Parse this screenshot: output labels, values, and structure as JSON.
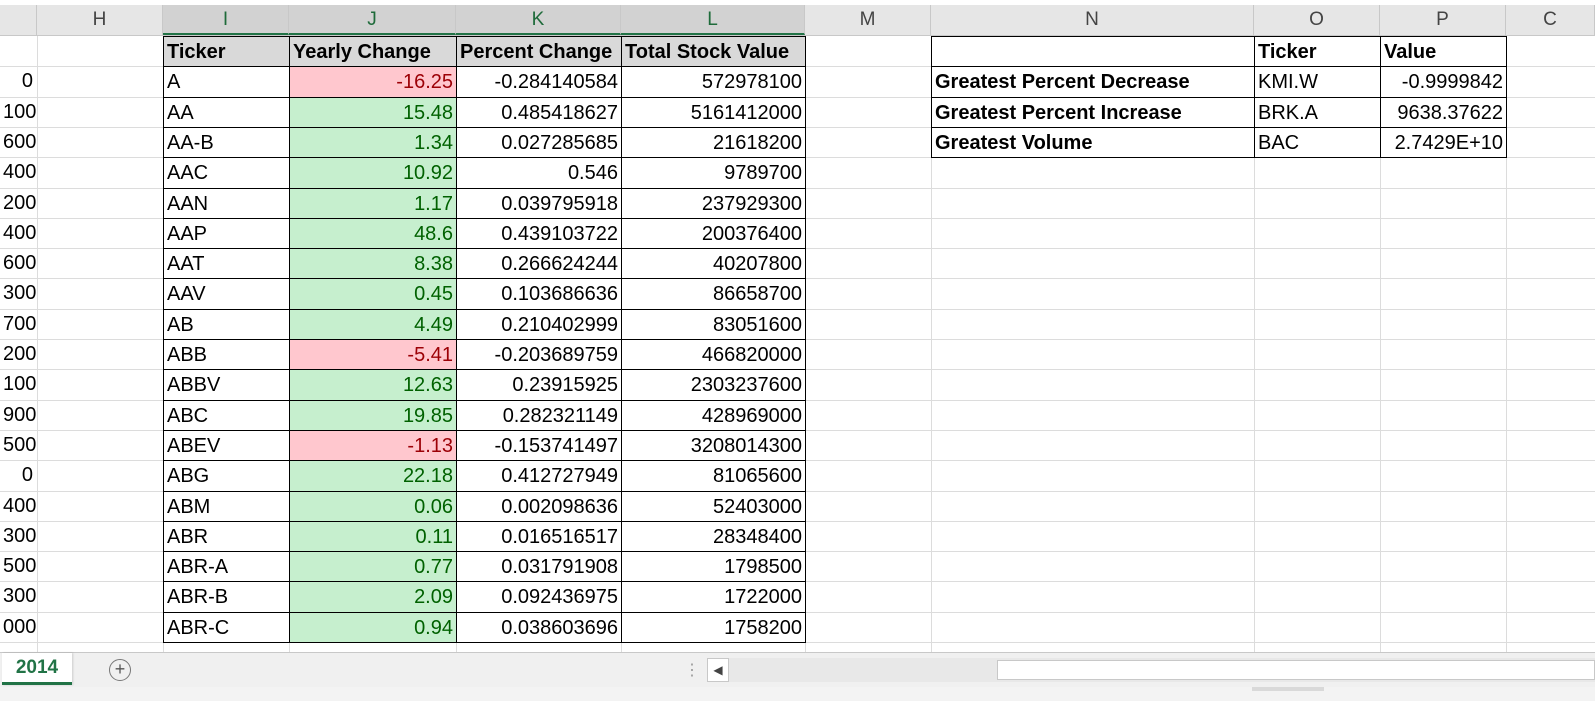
{
  "columns": [
    "H",
    "I",
    "J",
    "K",
    "L",
    "M",
    "N",
    "O",
    "P",
    "C"
  ],
  "row_labels": [
    "",
    "0",
    "100",
    "600",
    "400",
    "200",
    "400",
    "600",
    "300",
    "700",
    "200",
    "100",
    "900",
    "500",
    "0",
    "400",
    "300",
    "500",
    "300",
    "000"
  ],
  "table": {
    "headers": [
      "Ticker",
      "Yearly Change",
      "Percent Change",
      "Total Stock Value"
    ],
    "rows": [
      {
        "ticker": "A",
        "yearly": "-16.25",
        "percent": "-0.284140584",
        "total": "572978100",
        "trend": "neg"
      },
      {
        "ticker": "AA",
        "yearly": "15.48",
        "percent": "0.485418627",
        "total": "5161412000",
        "trend": "pos"
      },
      {
        "ticker": "AA-B",
        "yearly": "1.34",
        "percent": "0.027285685",
        "total": "21618200",
        "trend": "pos"
      },
      {
        "ticker": "AAC",
        "yearly": "10.92",
        "percent": "0.546",
        "total": "9789700",
        "trend": "pos"
      },
      {
        "ticker": "AAN",
        "yearly": "1.17",
        "percent": "0.039795918",
        "total": "237929300",
        "trend": "pos"
      },
      {
        "ticker": "AAP",
        "yearly": "48.6",
        "percent": "0.439103722",
        "total": "200376400",
        "trend": "pos"
      },
      {
        "ticker": "AAT",
        "yearly": "8.38",
        "percent": "0.266624244",
        "total": "40207800",
        "trend": "pos"
      },
      {
        "ticker": "AAV",
        "yearly": "0.45",
        "percent": "0.103686636",
        "total": "86658700",
        "trend": "pos"
      },
      {
        "ticker": "AB",
        "yearly": "4.49",
        "percent": "0.210402999",
        "total": "83051600",
        "trend": "pos"
      },
      {
        "ticker": "ABB",
        "yearly": "-5.41",
        "percent": "-0.203689759",
        "total": "466820000",
        "trend": "neg"
      },
      {
        "ticker": "ABBV",
        "yearly": "12.63",
        "percent": "0.23915925",
        "total": "2303237600",
        "trend": "pos"
      },
      {
        "ticker": "ABC",
        "yearly": "19.85",
        "percent": "0.282321149",
        "total": "428969000",
        "trend": "pos"
      },
      {
        "ticker": "ABEV",
        "yearly": "-1.13",
        "percent": "-0.153741497",
        "total": "3208014300",
        "trend": "neg"
      },
      {
        "ticker": "ABG",
        "yearly": "22.18",
        "percent": "0.412727949",
        "total": "81065600",
        "trend": "pos"
      },
      {
        "ticker": "ABM",
        "yearly": "0.06",
        "percent": "0.002098636",
        "total": "52403000",
        "trend": "pos"
      },
      {
        "ticker": "ABR",
        "yearly": "0.11",
        "percent": "0.016516517",
        "total": "28348400",
        "trend": "pos"
      },
      {
        "ticker": "ABR-A",
        "yearly": "0.77",
        "percent": "0.031791908",
        "total": "1798500",
        "trend": "pos"
      },
      {
        "ticker": "ABR-B",
        "yearly": "2.09",
        "percent": "0.092436975",
        "total": "1722000",
        "trend": "pos"
      },
      {
        "ticker": "ABR-C",
        "yearly": "0.94",
        "percent": "0.038603696",
        "total": "1758200",
        "trend": "pos"
      }
    ]
  },
  "summary": {
    "headers": [
      "Ticker",
      "Value"
    ],
    "rows": [
      {
        "label": "Greatest Percent Decrease",
        "ticker": "KMI.W",
        "value": "-0.9999842"
      },
      {
        "label": "Greatest Percent Increase",
        "ticker": "BRK.A",
        "value": "9638.37622"
      },
      {
        "label": "Greatest Volume",
        "ticker": "BAC",
        "value": "2.7429E+10"
      }
    ]
  },
  "sheet_tabs": [
    "2014"
  ],
  "add_sheet_symbol": "+",
  "scroll_dots": "⋮",
  "scroll_left_symbol": "◀",
  "colors": {
    "negative_fill": "#ffc7ce",
    "negative_text": "#9c0006",
    "positive_fill": "#c6efce",
    "positive_text": "#006100",
    "accent": "#217346"
  }
}
